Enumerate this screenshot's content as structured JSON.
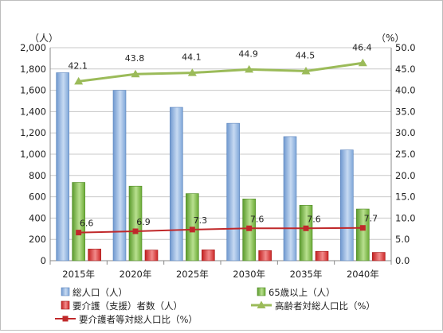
{
  "chart_data": {
    "type": "bar",
    "categories": [
      "2015年",
      "2020年",
      "2025年",
      "2030年",
      "2035年",
      "2040年"
    ],
    "left_axis": {
      "unit_label": "（人）",
      "ylim": [
        0,
        2000
      ],
      "ticks": [
        "0",
        "200",
        "400",
        "600",
        "800",
        "1,000",
        "1,200",
        "1,400",
        "1,600",
        "1,800",
        "2,000"
      ]
    },
    "right_axis": {
      "unit_label": "（%）",
      "ylim": [
        0,
        50
      ],
      "ticks": [
        "0.0",
        "5.0",
        "10.0",
        "15.0",
        "20.0",
        "25.0",
        "30.0",
        "35.0",
        "40.0",
        "45.0",
        "50.0"
      ]
    },
    "grid": true,
    "legend_position": "bottom",
    "series": [
      {
        "name": "総人口（人）",
        "type": "bar",
        "axis": "left",
        "color": "#8eb4e3",
        "values": [
          1765,
          1600,
          1440,
          1290,
          1165,
          1040
        ]
      },
      {
        "name": "65歳以上（人）",
        "type": "bar",
        "axis": "left",
        "color": "#77b843",
        "values": [
          735,
          700,
          630,
          580,
          520,
          485
        ]
      },
      {
        "name": "要介護（支援）者数（人）",
        "type": "bar",
        "axis": "left",
        "color": "#d92a2a",
        "values": [
          110,
          100,
          102,
          95,
          88,
          78
        ]
      },
      {
        "name": "高齢者対総人口比（%）",
        "type": "line",
        "axis": "right",
        "color": "#9bbb59",
        "values": [
          42.1,
          43.8,
          44.1,
          44.9,
          44.5,
          46.4
        ],
        "labels": [
          "42.1",
          "43.8",
          "44.1",
          "44.9",
          "44.5",
          "46.4"
        ]
      },
      {
        "name": "要介護者等対総人口比（%）",
        "type": "line",
        "axis": "right",
        "color": "#c0282a",
        "values": [
          6.6,
          6.9,
          7.3,
          7.6,
          7.6,
          7.7
        ],
        "labels": [
          "6.6",
          "6.9",
          "7.3",
          "7.6",
          "7.6",
          "7.7"
        ]
      }
    ]
  }
}
